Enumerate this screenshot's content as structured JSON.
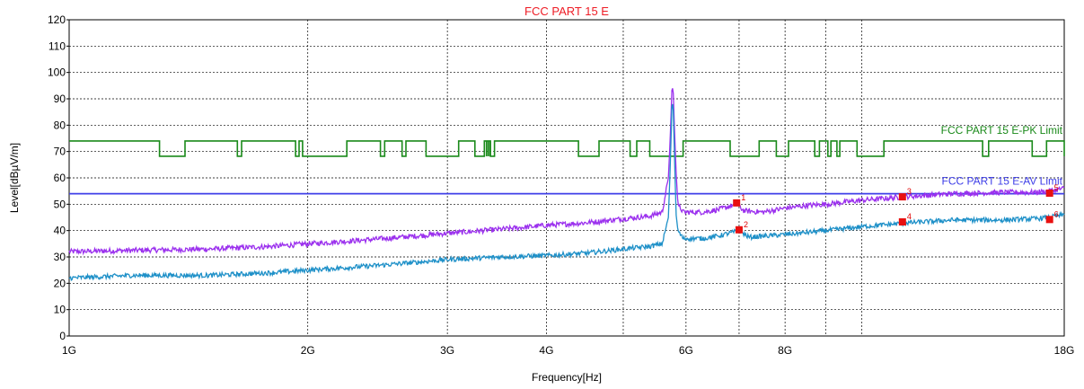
{
  "chart_data": {
    "type": "line",
    "title": "FCC PART 15 E",
    "xlabel": "Frequency[Hz]",
    "ylabel": "Level[dBµV/m]",
    "x_scale": "log",
    "xlim_hz": [
      1000000000,
      18000000000
    ],
    "ylim": [
      0,
      120
    ],
    "grid": true,
    "x_ticks": [
      {
        "label": "1G",
        "value": 1000000000
      },
      {
        "label": "2G",
        "value": 2000000000
      },
      {
        "label": "3G",
        "value": 3000000000
      },
      {
        "label": "4G",
        "value": 4000000000
      },
      {
        "label": "6G",
        "value": 6000000000
      },
      {
        "label": "8G",
        "value": 8000000000
      },
      {
        "label": "18G",
        "value": 18000000000
      }
    ],
    "x_grid_values": [
      1000000000,
      2000000000,
      3000000000,
      4000000000,
      5000000000,
      6000000000,
      7000000000,
      8000000000,
      9000000000,
      10000000000,
      18000000000
    ],
    "y_ticks": [
      "0",
      "10",
      "20",
      "30",
      "40",
      "50",
      "60",
      "70",
      "80",
      "90",
      "100",
      "110",
      "120"
    ],
    "limits": [
      {
        "name": "FCC PART 15 E-PK Limit",
        "color": "#1a8a1a",
        "base": 68.2,
        "raised": 74,
        "raised_bands_ghz": [
          [
            1.0,
            1.3
          ],
          [
            1.4,
            1.63
          ],
          [
            1.65,
            1.93
          ],
          [
            1.95,
            1.97
          ],
          [
            2.24,
            2.47
          ],
          [
            2.5,
            2.63
          ],
          [
            2.66,
            2.82
          ],
          [
            3.1,
            3.25
          ],
          [
            3.34,
            3.4
          ],
          [
            3.44,
            4.39
          ],
          [
            4.66,
            5.1
          ],
          [
            5.2,
            5.4
          ],
          [
            5.95,
            6.82
          ],
          [
            7.42,
            7.8
          ],
          [
            8.08,
            8.72
          ],
          [
            8.84,
            9.06
          ],
          [
            9.14,
            9.3
          ],
          [
            9.38,
            9.86
          ],
          [
            10.66,
            14.2
          ],
          [
            14.45,
            16.4
          ],
          [
            17.1,
            18.0
          ]
        ],
        "spike_lines_ghz": [
          3.36,
          3.375,
          3.39
        ]
      },
      {
        "name": "FCC PART 15 E-AV Limit",
        "color": "#3f3fe8",
        "level": 54
      }
    ],
    "series": [
      {
        "color": "#9b30ee",
        "points": [
          [
            1.0,
            32
          ],
          [
            1.2,
            32.5
          ],
          [
            1.5,
            33
          ],
          [
            1.8,
            34
          ],
          [
            2.0,
            35
          ],
          [
            2.5,
            37
          ],
          [
            3.0,
            39
          ],
          [
            3.5,
            40.5
          ],
          [
            4.0,
            42
          ],
          [
            4.5,
            43
          ],
          [
            5.0,
            44.5
          ],
          [
            5.4,
            45.5
          ],
          [
            5.6,
            47
          ],
          [
            5.7,
            60
          ],
          [
            5.74,
            80
          ],
          [
            5.76,
            94
          ],
          [
            5.78,
            94
          ],
          [
            5.8,
            80
          ],
          [
            5.83,
            62
          ],
          [
            5.86,
            50
          ],
          [
            5.95,
            47
          ],
          [
            6.3,
            47
          ],
          [
            6.6,
            48
          ],
          [
            6.95,
            50
          ],
          [
            7.1,
            47.5
          ],
          [
            7.5,
            47
          ],
          [
            8.0,
            48.5
          ],
          [
            8.5,
            49.5
          ],
          [
            9.0,
            50
          ],
          [
            10.0,
            51.5
          ],
          [
            11.5,
            53
          ],
          [
            13.0,
            54
          ],
          [
            15.0,
            54.5
          ],
          [
            16.5,
            54.5
          ],
          [
            17.2,
            55
          ],
          [
            18.0,
            56
          ]
        ],
        "noise": 1.0
      },
      {
        "color": "#1e90c8",
        "points": [
          [
            1.0,
            22
          ],
          [
            1.2,
            23
          ],
          [
            1.5,
            23
          ],
          [
            1.8,
            24
          ],
          [
            2.0,
            25
          ],
          [
            2.5,
            27
          ],
          [
            3.0,
            29
          ],
          [
            3.5,
            30
          ],
          [
            4.0,
            30.5
          ],
          [
            4.5,
            31.5
          ],
          [
            5.0,
            33
          ],
          [
            5.4,
            34
          ],
          [
            5.6,
            35
          ],
          [
            5.7,
            45
          ],
          [
            5.74,
            70
          ],
          [
            5.76,
            88
          ],
          [
            5.78,
            88
          ],
          [
            5.8,
            70
          ],
          [
            5.83,
            46
          ],
          [
            5.86,
            40
          ],
          [
            5.95,
            37
          ],
          [
            6.3,
            37
          ],
          [
            6.6,
            38
          ],
          [
            7.0,
            40
          ],
          [
            7.2,
            37.5
          ],
          [
            7.6,
            38
          ],
          [
            8.0,
            38.5
          ],
          [
            9.0,
            40
          ],
          [
            10.0,
            41.5
          ],
          [
            11.5,
            43
          ],
          [
            13.0,
            44
          ],
          [
            15.0,
            44
          ],
          [
            16.5,
            44.5
          ],
          [
            17.2,
            45
          ],
          [
            18.0,
            46
          ]
        ],
        "noise": 0.9
      }
    ],
    "markers": [
      {
        "label": "1",
        "f_ghz": 6.95,
        "level": 50.5
      },
      {
        "label": "2",
        "f_ghz": 7.0,
        "level": 40.3
      },
      {
        "label": "3",
        "f_ghz": 11.25,
        "level": 52.8
      },
      {
        "label": "4",
        "f_ghz": 11.25,
        "level": 43.3
      },
      {
        "label": "5",
        "f_ghz": 17.25,
        "level": 54.2
      },
      {
        "label": "6",
        "f_ghz": 17.25,
        "level": 44.2
      }
    ]
  }
}
